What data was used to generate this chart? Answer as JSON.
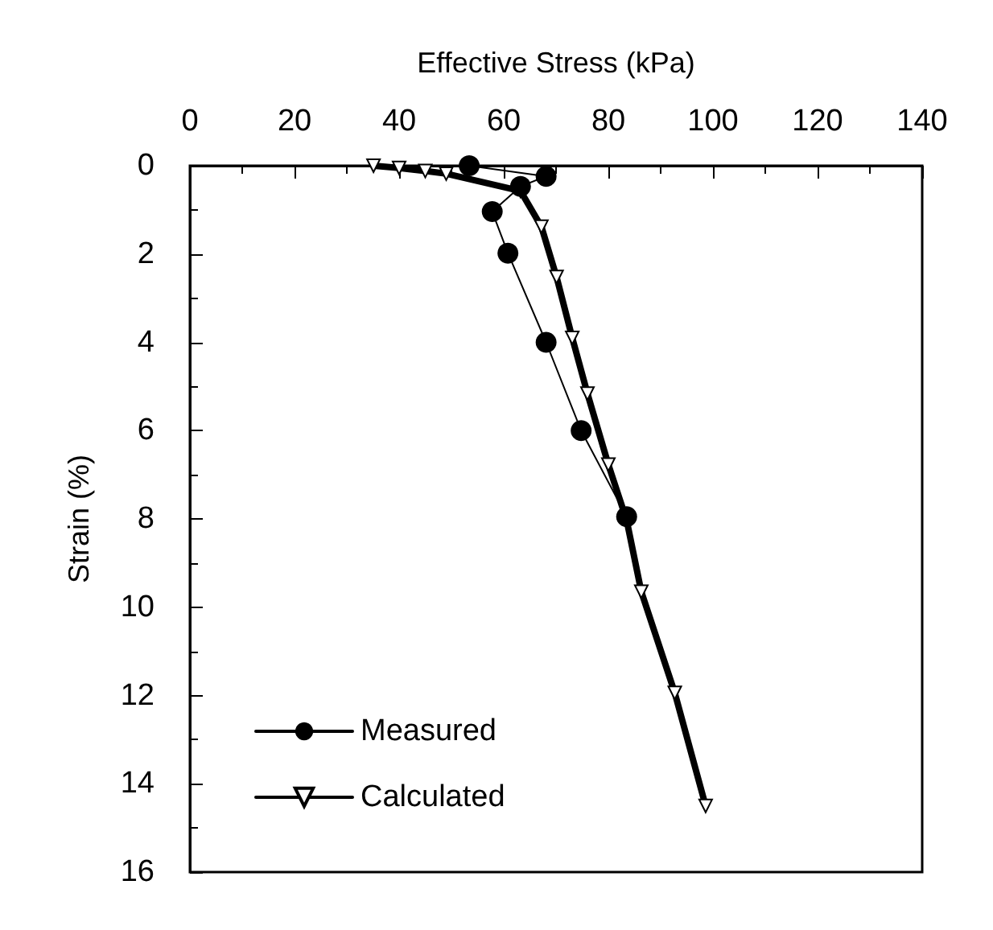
{
  "chart_data": {
    "type": "line",
    "xlabel": "Effective Stress (kPa)",
    "ylabel": "Strain (%)",
    "xlim": [
      0,
      140
    ],
    "xticks": [
      0,
      20,
      40,
      60,
      80,
      100,
      120,
      140
    ],
    "ylim": [
      16,
      0
    ],
    "yticks": [
      0,
      2,
      4,
      6,
      8,
      10,
      12,
      14,
      16
    ],
    "legend": "bottom left",
    "grid": false,
    "series": [
      {
        "name": "Measured",
        "color": "#000000",
        "marker": "circle",
        "x": [
          53.4,
          68.1,
          63.2,
          57.8,
          60.8,
          68.1,
          74.8,
          83.5
        ],
        "values": [
          0.0,
          0.24,
          0.47,
          1.04,
          1.98,
          4.0,
          6.0,
          7.95
        ]
      },
      {
        "name": "Calculated",
        "color": "#000000",
        "marker": "triangle",
        "x": [
          35.1,
          40,
          45,
          49,
          63.2,
          67.2,
          70.1,
          73.1,
          76,
          80,
          83.5,
          86.3,
          92.7,
          98.6
        ],
        "values": [
          0.0,
          0.05,
          0.12,
          0.18,
          0.57,
          1.38,
          2.52,
          3.9,
          5.16,
          6.77,
          8.03,
          9.65,
          11.94,
          14.5
        ]
      }
    ]
  }
}
